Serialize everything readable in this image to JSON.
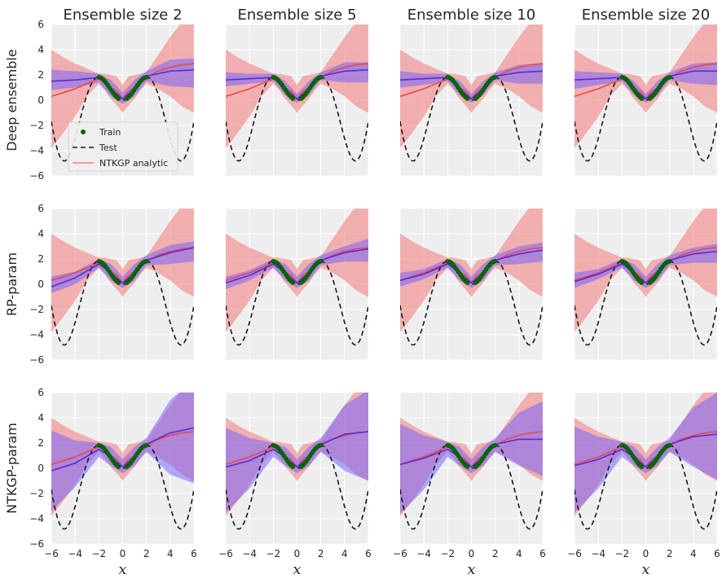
{
  "chart_data": {
    "type": "line",
    "layout": {
      "rows": 3,
      "cols": 4
    },
    "col_titles": [
      "Ensemble size 2",
      "Ensemble size 5",
      "Ensemble size 10",
      "Ensemble size 20"
    ],
    "row_labels": [
      "Deep ensemble",
      "RP-param",
      "NTKGP-param"
    ],
    "xlabel": "x",
    "xlim": [
      -6,
      6
    ],
    "ylim": [
      -6,
      6
    ],
    "xticks": [
      -6,
      -4,
      -2,
      0,
      2,
      4,
      6
    ],
    "yticks": [
      -6,
      -4,
      -2,
      0,
      2,
      4,
      6
    ],
    "xtick_labels": [
      "−6",
      "−4",
      "−2",
      "0",
      "2",
      "4",
      "6"
    ],
    "ytick_labels": [
      "−6",
      "−4",
      "−2",
      "0",
      "2",
      "4",
      "6"
    ],
    "grid": true,
    "legend": {
      "placement": "lower-left of top-left panel",
      "entries": [
        {
          "label": "Train",
          "marker": "dot",
          "color": "#006400"
        },
        {
          "label": "Test",
          "marker": "dashed-line",
          "color": "#1a1a1a"
        },
        {
          "label": "NTKGP analytic",
          "marker": "line",
          "color": "#f08080"
        }
      ]
    },
    "colors": {
      "background": "#eeeeee",
      "grid": "#ffffff",
      "train": "#006400",
      "test": "#1a1a1a",
      "analytic_line": "#e8484a",
      "analytic_band": "#f47a7a",
      "ensemble_line": "#5a2bd6",
      "ensemble_band": "#6b5bff"
    },
    "train_x": [
      -2,
      -1.85,
      -1.7,
      -1.55,
      -1.4,
      -1.25,
      -1.1,
      -0.95,
      -0.8,
      -0.65,
      -0.5,
      -0.35,
      0.35,
      0.5,
      0.65,
      0.8,
      0.95,
      1.1,
      1.25,
      1.4,
      1.55,
      1.7,
      1.85,
      2
    ],
    "test_x": [
      -6,
      -5.5,
      -5,
      -4.5,
      -4,
      -3.5,
      -3,
      -2.5,
      -2,
      -1.5,
      -1,
      -0.5,
      0,
      0.5,
      1,
      1.5,
      2,
      2.5,
      3,
      3.5,
      4,
      4.5,
      5,
      5.5,
      6
    ],
    "analytic": {
      "x": [
        -6,
        -5,
        -4,
        -3,
        -2,
        -1.5,
        -1,
        -0.5,
        0,
        0.5,
        1,
        1.5,
        2,
        3,
        4,
        5,
        6
      ],
      "mean": [
        0.3,
        0.6,
        0.9,
        1.3,
        1.7,
        1.4,
        1.0,
        0.7,
        0.1,
        0.7,
        1.0,
        1.4,
        1.8,
        2.3,
        2.6,
        2.8,
        2.9
      ],
      "lower": [
        -3.8,
        -2.6,
        -1.3,
        0.3,
        1.3,
        0.8,
        0.1,
        -0.4,
        -1.0,
        -0.4,
        0.1,
        0.8,
        1.3,
        0.9,
        0.3,
        -0.5,
        -1.0
      ],
      "upper": [
        4.0,
        3.4,
        2.9,
        2.5,
        2.1,
        2.1,
        2.0,
        1.9,
        1.2,
        1.9,
        2.0,
        2.1,
        2.2,
        3.6,
        5.0,
        6.2,
        7.2
      ]
    },
    "panels": [
      {
        "row": 0,
        "col": 0,
        "x": [
          -6,
          -4,
          -2,
          -1,
          0,
          1,
          2,
          4,
          6
        ],
        "mean": [
          1.5,
          1.6,
          1.8,
          0.9,
          0.1,
          0.9,
          1.9,
          2.3,
          2.4
        ],
        "lower": [
          0.8,
          1.0,
          1.4,
          0.3,
          -0.3,
          0.3,
          1.5,
          1.1,
          1.0
        ],
        "upper": [
          2.4,
          2.3,
          2.1,
          1.6,
          0.6,
          1.6,
          2.3,
          3.2,
          3.3
        ]
      },
      {
        "row": 0,
        "col": 1,
        "x": [
          -6,
          -4,
          -2,
          -1,
          0,
          1,
          2,
          4,
          6
        ],
        "mean": [
          1.6,
          1.7,
          1.8,
          0.9,
          0.1,
          0.9,
          1.9,
          2.3,
          2.4
        ],
        "lower": [
          1.1,
          1.3,
          1.5,
          0.4,
          -0.2,
          0.4,
          1.6,
          1.4,
          1.4
        ],
        "upper": [
          2.2,
          2.1,
          2.1,
          1.5,
          0.5,
          1.5,
          2.2,
          3.0,
          3.0
        ]
      },
      {
        "row": 0,
        "col": 2,
        "x": [
          -6,
          -4,
          -2,
          -1,
          0,
          1,
          2,
          4,
          6
        ],
        "mean": [
          1.6,
          1.7,
          1.8,
          0.9,
          0.1,
          0.9,
          1.9,
          2.2,
          2.3
        ],
        "lower": [
          1.0,
          1.2,
          1.5,
          0.4,
          -0.2,
          0.4,
          1.6,
          1.3,
          1.3
        ],
        "upper": [
          2.3,
          2.1,
          2.1,
          1.5,
          0.5,
          1.5,
          2.2,
          2.8,
          2.9
        ]
      },
      {
        "row": 0,
        "col": 3,
        "x": [
          -6,
          -4,
          -2,
          -1,
          0,
          1,
          2,
          4,
          6
        ],
        "mean": [
          1.6,
          1.7,
          1.8,
          0.9,
          0.1,
          0.9,
          1.9,
          2.3,
          2.3
        ],
        "lower": [
          0.9,
          1.2,
          1.5,
          0.4,
          -0.2,
          0.4,
          1.6,
          1.3,
          1.2
        ],
        "upper": [
          2.3,
          2.2,
          2.1,
          1.5,
          0.5,
          1.5,
          2.2,
          2.9,
          3.0
        ]
      },
      {
        "row": 1,
        "col": 0,
        "x": [
          -6,
          -4,
          -2,
          -1,
          0,
          1,
          2,
          4,
          6
        ],
        "mean": [
          -0.2,
          0.5,
          1.6,
          0.9,
          0.1,
          0.9,
          1.9,
          2.5,
          2.9
        ],
        "lower": [
          -0.7,
          0.0,
          1.3,
          0.3,
          -0.3,
          0.3,
          1.5,
          1.6,
          1.8
        ],
        "upper": [
          0.6,
          1.0,
          2.0,
          1.6,
          0.6,
          1.6,
          2.3,
          3.1,
          3.4
        ]
      },
      {
        "row": 1,
        "col": 1,
        "x": [
          -6,
          -4,
          -2,
          -1,
          0,
          1,
          2,
          4,
          6
        ],
        "mean": [
          0.1,
          0.7,
          1.6,
          0.9,
          0.1,
          0.9,
          1.9,
          2.5,
          2.8
        ],
        "lower": [
          -0.4,
          0.3,
          1.3,
          0.3,
          -0.3,
          0.3,
          1.5,
          1.8,
          1.8
        ],
        "upper": [
          0.6,
          1.1,
          2.0,
          1.6,
          0.6,
          1.6,
          2.3,
          3.0,
          3.6
        ]
      },
      {
        "row": 1,
        "col": 2,
        "x": [
          -6,
          -4,
          -2,
          -1,
          0,
          1,
          2,
          4,
          6
        ],
        "mean": [
          0.3,
          0.8,
          1.6,
          0.9,
          0.1,
          0.9,
          1.9,
          2.4,
          2.7
        ],
        "lower": [
          -0.2,
          0.4,
          1.3,
          0.3,
          -0.3,
          0.3,
          1.5,
          1.6,
          1.8
        ],
        "upper": [
          0.9,
          1.2,
          2.0,
          1.6,
          0.6,
          1.6,
          2.3,
          3.0,
          3.3
        ]
      },
      {
        "row": 1,
        "col": 3,
        "x": [
          -6,
          -4,
          -2,
          -1,
          0,
          1,
          2,
          4,
          6
        ],
        "mean": [
          0.2,
          0.8,
          1.6,
          0.9,
          0.1,
          0.9,
          1.9,
          2.4,
          2.6
        ],
        "lower": [
          -0.3,
          0.4,
          1.3,
          0.3,
          -0.3,
          0.3,
          1.5,
          1.7,
          1.7
        ],
        "upper": [
          0.9,
          1.2,
          2.0,
          1.6,
          0.6,
          1.6,
          2.3,
          2.9,
          3.2
        ]
      },
      {
        "row": 2,
        "col": 0,
        "x": [
          -6,
          -4,
          -2,
          -1,
          0,
          1,
          2,
          4,
          6
        ],
        "mean": [
          -0.2,
          0.4,
          1.5,
          0.9,
          0.1,
          0.9,
          1.9,
          2.8,
          3.2
        ],
        "lower": [
          -3.4,
          -1.5,
          0.9,
          0.2,
          -0.4,
          0.2,
          1.3,
          -0.5,
          -1.2
        ],
        "upper": [
          3.0,
          2.2,
          2.0,
          1.7,
          0.7,
          1.7,
          2.4,
          5.4,
          7.0
        ]
      },
      {
        "row": 2,
        "col": 1,
        "x": [
          -6,
          -4,
          -2,
          -1,
          0,
          1,
          2,
          4,
          6
        ],
        "mean": [
          0.1,
          0.6,
          1.5,
          0.9,
          0.1,
          0.9,
          1.9,
          2.7,
          2.9
        ],
        "lower": [
          -3.5,
          -1.6,
          0.9,
          0.2,
          -0.4,
          0.2,
          1.3,
          -0.2,
          -1.0
        ],
        "upper": [
          3.2,
          2.4,
          2.0,
          1.7,
          0.7,
          1.7,
          2.4,
          5.0,
          6.2
        ]
      },
      {
        "row": 2,
        "col": 2,
        "x": [
          -6,
          -4,
          -2,
          -1,
          0,
          1,
          2,
          4,
          6
        ],
        "mean": [
          0.3,
          0.8,
          1.5,
          0.9,
          0.1,
          0.9,
          1.9,
          2.3,
          2.3
        ],
        "lower": [
          -3.6,
          -1.7,
          0.9,
          0.2,
          -0.4,
          0.2,
          1.3,
          0.2,
          -0.6
        ],
        "upper": [
          3.5,
          2.6,
          2.1,
          1.7,
          0.7,
          1.7,
          2.4,
          4.4,
          5.3
        ]
      },
      {
        "row": 2,
        "col": 3,
        "x": [
          -6,
          -4,
          -2,
          -1,
          0,
          1,
          2,
          4,
          6
        ],
        "mean": [
          0.2,
          0.7,
          1.5,
          0.9,
          0.1,
          0.9,
          1.9,
          2.5,
          2.7
        ],
        "lower": [
          -3.5,
          -1.6,
          0.9,
          0.2,
          -0.4,
          0.2,
          1.3,
          0.1,
          -0.9
        ],
        "upper": [
          3.3,
          2.5,
          2.1,
          1.7,
          0.7,
          1.7,
          2.4,
          4.8,
          6.0
        ]
      }
    ]
  }
}
